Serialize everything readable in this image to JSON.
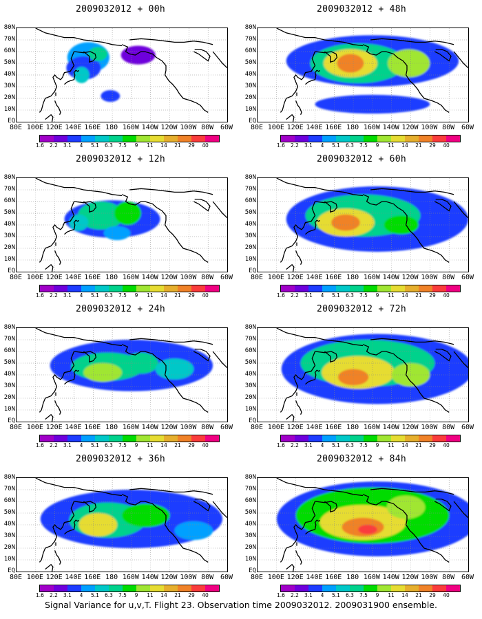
{
  "panels": [
    {
      "title": "2009032012 + 00h",
      "fields": [
        {
          "lon": 155,
          "lat": 55,
          "rx": 22,
          "ry": 13,
          "level": 3
        },
        {
          "lon": 150,
          "lat": 46,
          "rx": 18,
          "ry": 10,
          "level": 2
        },
        {
          "lon": 165,
          "lat": 58,
          "rx": 10,
          "ry": 6,
          "level": 5
        },
        {
          "lon": 178,
          "lat": 22,
          "rx": 10,
          "ry": 5,
          "level": 2
        },
        {
          "lon": 207,
          "lat": 57,
          "rx": 18,
          "ry": 8,
          "level": 1
        },
        {
          "lon": 148,
          "lat": 40,
          "rx": 8,
          "ry": 7,
          "level": 4
        }
      ]
    },
    {
      "title": "2009032012 + 48h",
      "fields": [
        {
          "lon": 200,
          "lat": 52,
          "rx": 90,
          "ry": 22,
          "level": 2
        },
        {
          "lon": 185,
          "lat": 50,
          "rx": 50,
          "ry": 17,
          "level": 5
        },
        {
          "lon": 177,
          "lat": 50,
          "rx": 28,
          "ry": 12,
          "level": 8
        },
        {
          "lon": 177,
          "lat": 50,
          "rx": 14,
          "ry": 8,
          "level": 10
        },
        {
          "lon": 238,
          "lat": 50,
          "rx": 22,
          "ry": 12,
          "level": 7
        },
        {
          "lon": 200,
          "lat": 15,
          "rx": 60,
          "ry": 8,
          "level": 2
        }
      ]
    },
    {
      "title": "2009032012 + 12h",
      "fields": [
        {
          "lon": 180,
          "lat": 45,
          "rx": 50,
          "ry": 16,
          "level": 2
        },
        {
          "lon": 168,
          "lat": 48,
          "rx": 24,
          "ry": 12,
          "level": 5
        },
        {
          "lon": 196,
          "lat": 50,
          "rx": 14,
          "ry": 10,
          "level": 6
        },
        {
          "lon": 145,
          "lat": 42,
          "rx": 10,
          "ry": 7,
          "level": 4
        },
        {
          "lon": 185,
          "lat": 33,
          "rx": 14,
          "ry": 6,
          "level": 3
        }
      ]
    },
    {
      "title": "2009032012 + 60h",
      "fields": [
        {
          "lon": 205,
          "lat": 45,
          "rx": 95,
          "ry": 28,
          "level": 2
        },
        {
          "lon": 190,
          "lat": 48,
          "rx": 60,
          "ry": 18,
          "level": 5
        },
        {
          "lon": 172,
          "lat": 42,
          "rx": 30,
          "ry": 12,
          "level": 8
        },
        {
          "lon": 172,
          "lat": 42,
          "rx": 15,
          "ry": 7,
          "level": 10
        },
        {
          "lon": 230,
          "lat": 40,
          "rx": 18,
          "ry": 8,
          "level": 6
        }
      ]
    },
    {
      "title": "2009032012 + 24h",
      "fields": [
        {
          "lon": 200,
          "lat": 48,
          "rx": 85,
          "ry": 22,
          "level": 2
        },
        {
          "lon": 175,
          "lat": 47,
          "rx": 38,
          "ry": 12,
          "level": 5
        },
        {
          "lon": 170,
          "lat": 42,
          "rx": 20,
          "ry": 8,
          "level": 7
        },
        {
          "lon": 210,
          "lat": 50,
          "rx": 18,
          "ry": 9,
          "level": 5
        },
        {
          "lon": 245,
          "lat": 45,
          "rx": 20,
          "ry": 9,
          "level": 4
        }
      ]
    },
    {
      "title": "2009032012 + 72h",
      "fields": [
        {
          "lon": 205,
          "lat": 45,
          "rx": 100,
          "ry": 30,
          "level": 2
        },
        {
          "lon": 195,
          "lat": 50,
          "rx": 70,
          "ry": 20,
          "level": 5
        },
        {
          "lon": 185,
          "lat": 42,
          "rx": 38,
          "ry": 14,
          "level": 8
        },
        {
          "lon": 180,
          "lat": 38,
          "rx": 16,
          "ry": 7,
          "level": 10
        },
        {
          "lon": 240,
          "lat": 40,
          "rx": 20,
          "ry": 10,
          "level": 7
        }
      ]
    },
    {
      "title": "2009032012 + 36h",
      "fields": [
        {
          "lon": 200,
          "lat": 45,
          "rx": 95,
          "ry": 25,
          "level": 2
        },
        {
          "lon": 175,
          "lat": 44,
          "rx": 40,
          "ry": 15,
          "level": 5
        },
        {
          "lon": 165,
          "lat": 40,
          "rx": 20,
          "ry": 10,
          "level": 8
        },
        {
          "lon": 215,
          "lat": 48,
          "rx": 25,
          "ry": 10,
          "level": 6
        },
        {
          "lon": 265,
          "lat": 35,
          "rx": 20,
          "ry": 8,
          "level": 3
        }
      ]
    },
    {
      "title": "2009032012 + 84h",
      "fields": [
        {
          "lon": 205,
          "lat": 45,
          "rx": 105,
          "ry": 32,
          "level": 2
        },
        {
          "lon": 200,
          "lat": 48,
          "rx": 80,
          "ry": 24,
          "level": 6
        },
        {
          "lon": 190,
          "lat": 42,
          "rx": 45,
          "ry": 15,
          "level": 8
        },
        {
          "lon": 190,
          "lat": 38,
          "rx": 22,
          "ry": 8,
          "level": 10
        },
        {
          "lon": 195,
          "lat": 36,
          "rx": 10,
          "ry": 4,
          "level": 11
        },
        {
          "lon": 235,
          "lat": 55,
          "rx": 20,
          "ry": 10,
          "level": 7
        }
      ]
    }
  ],
  "lat_labels": [
    "80N",
    "70N",
    "60N",
    "50N",
    "40N",
    "30N",
    "20N",
    "10N",
    "EQ"
  ],
  "lon_labels": [
    "80E",
    "100E",
    "120E",
    "140E",
    "160E",
    "180",
    "160W",
    "140W",
    "120W",
    "100W",
    "80W",
    "60W"
  ],
  "colorbar": {
    "colors": [
      "#a000c8",
      "#6e00dc",
      "#1e3cff",
      "#00a0ff",
      "#00c8c8",
      "#00d28c",
      "#00dc00",
      "#a0e632",
      "#e6dc32",
      "#e6af2d",
      "#f08228",
      "#fa3c3c",
      "#f00082"
    ],
    "labels": [
      "1.6",
      "2.2",
      "3.1",
      "4",
      "5.1",
      "6.3",
      "7.5",
      "9",
      "11",
      "14",
      "21",
      "29",
      "40"
    ]
  },
  "caption": "Signal Variance for u,v,T. Flight 23. Observation time 2009032012. 2009031900 ensemble."
}
